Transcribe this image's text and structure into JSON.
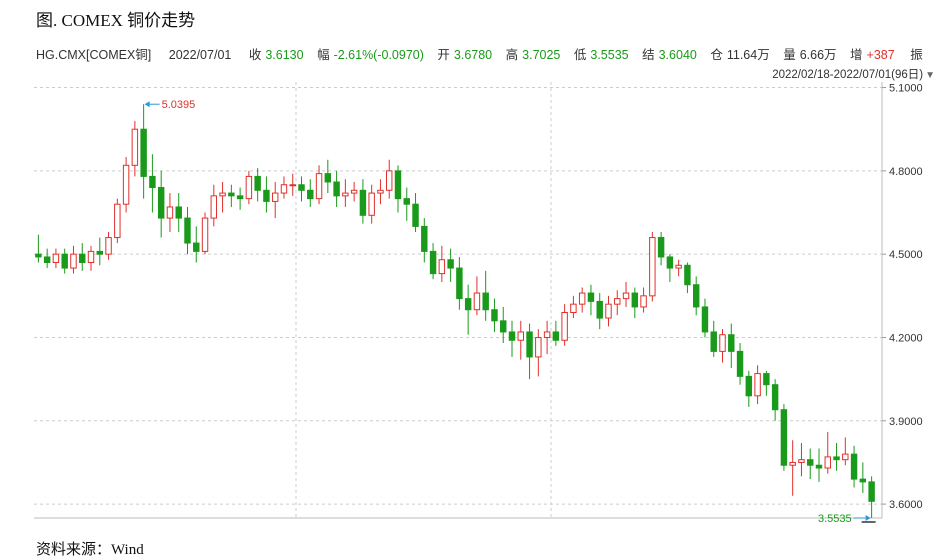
{
  "figure_title": "图. COMEX 铜价走势",
  "source": "资料来源：Wind",
  "info": {
    "symbol": "HG.CMX[COMEX铜]",
    "date": "2022/07/01",
    "close_label": "收",
    "close": "3.6130",
    "change_label": "幅",
    "change": "-2.61%(-0.0970)",
    "open_label": "开",
    "open": "3.6780",
    "high_label": "高",
    "high": "3.7025",
    "low_label": "低",
    "low": "3.5535",
    "settle_label": "结",
    "settle": "3.6040",
    "oi_label": "仓",
    "oi": "11.64万",
    "volume_label": "量",
    "volume": "6.66万",
    "oi_change_label": "增",
    "oi_change": "+387",
    "amplitude_label": "振",
    "range": "2022/02/18-2022/07/01(96日)"
  },
  "colors": {
    "up": "#e0302c",
    "down": "#1a9a1a",
    "grid": "#cccccc",
    "annot": "#2a9bd6"
  },
  "chart_data": {
    "type": "candlestick",
    "ylim": [
      3.55,
      5.12
    ],
    "yticks": [
      "3.6000",
      "3.9000",
      "4.2000",
      "4.5000",
      "4.8000",
      "5.1000"
    ],
    "annotations": {
      "max": "5.0395",
      "min": "3.5535"
    },
    "candles": [
      [
        4.5,
        4.49,
        4.57,
        4.47
      ],
      [
        4.49,
        4.47,
        4.52,
        4.45
      ],
      [
        4.47,
        4.5,
        4.52,
        4.45
      ],
      [
        4.5,
        4.45,
        4.52,
        4.43
      ],
      [
        4.45,
        4.5,
        4.53,
        4.43
      ],
      [
        4.5,
        4.47,
        4.54,
        4.44
      ],
      [
        4.47,
        4.51,
        4.53,
        4.44
      ],
      [
        4.51,
        4.5,
        4.56,
        4.46
      ],
      [
        4.5,
        4.56,
        4.58,
        4.48
      ],
      [
        4.56,
        4.68,
        4.7,
        4.54
      ],
      [
        4.68,
        4.82,
        4.85,
        4.65
      ],
      [
        4.82,
        4.95,
        4.98,
        4.78
      ],
      [
        4.95,
        4.78,
        5.04,
        4.7
      ],
      [
        4.78,
        4.74,
        4.86,
        4.65
      ],
      [
        4.74,
        4.63,
        4.8,
        4.56
      ],
      [
        4.63,
        4.67,
        4.72,
        4.58
      ],
      [
        4.67,
        4.63,
        4.72,
        4.58
      ],
      [
        4.63,
        4.54,
        4.67,
        4.5
      ],
      [
        4.54,
        4.51,
        4.6,
        4.47
      ],
      [
        4.51,
        4.63,
        4.65,
        4.5
      ],
      [
        4.63,
        4.71,
        4.75,
        4.6
      ],
      [
        4.71,
        4.72,
        4.76,
        4.65
      ],
      [
        4.72,
        4.71,
        4.75,
        4.67
      ],
      [
        4.71,
        4.7,
        4.74,
        4.66
      ],
      [
        4.7,
        4.78,
        4.8,
        4.68
      ],
      [
        4.78,
        4.73,
        4.81,
        4.69
      ],
      [
        4.73,
        4.69,
        4.78,
        4.65
      ],
      [
        4.69,
        4.72,
        4.76,
        4.63
      ],
      [
        4.72,
        4.75,
        4.78,
        4.7
      ],
      [
        4.75,
        4.75,
        4.79,
        4.71
      ],
      [
        4.75,
        4.73,
        4.78,
        4.69
      ],
      [
        4.73,
        4.7,
        4.77,
        4.67
      ],
      [
        4.7,
        4.79,
        4.82,
        4.68
      ],
      [
        4.79,
        4.76,
        4.84,
        4.72
      ],
      [
        4.76,
        4.71,
        4.8,
        4.67
      ],
      [
        4.71,
        4.72,
        4.77,
        4.67
      ],
      [
        4.72,
        4.73,
        4.76,
        4.69
      ],
      [
        4.73,
        4.64,
        4.77,
        4.61
      ],
      [
        4.64,
        4.72,
        4.75,
        4.61
      ],
      [
        4.72,
        4.73,
        4.77,
        4.68
      ],
      [
        4.73,
        4.8,
        4.84,
        4.7
      ],
      [
        4.8,
        4.7,
        4.82,
        4.65
      ],
      [
        4.7,
        4.68,
        4.74,
        4.62
      ],
      [
        4.68,
        4.6,
        4.72,
        4.58
      ],
      [
        4.6,
        4.51,
        4.63,
        4.47
      ],
      [
        4.51,
        4.43,
        4.54,
        4.41
      ],
      [
        4.43,
        4.48,
        4.53,
        4.4
      ],
      [
        4.48,
        4.45,
        4.52,
        4.4
      ],
      [
        4.45,
        4.34,
        4.49,
        4.3
      ],
      [
        4.34,
        4.3,
        4.39,
        4.21
      ],
      [
        4.3,
        4.36,
        4.42,
        4.28
      ],
      [
        4.36,
        4.3,
        4.44,
        4.26
      ],
      [
        4.3,
        4.26,
        4.34,
        4.22
      ],
      [
        4.26,
        4.22,
        4.31,
        4.18
      ],
      [
        4.22,
        4.19,
        4.26,
        4.13
      ],
      [
        4.19,
        4.22,
        4.26,
        4.12
      ],
      [
        4.22,
        4.13,
        4.25,
        4.05
      ],
      [
        4.13,
        4.2,
        4.23,
        4.06
      ],
      [
        4.2,
        4.22,
        4.26,
        4.14
      ],
      [
        4.22,
        4.19,
        4.26,
        4.17
      ],
      [
        4.19,
        4.29,
        4.32,
        4.17
      ],
      [
        4.29,
        4.32,
        4.35,
        4.27
      ],
      [
        4.32,
        4.36,
        4.38,
        4.29
      ],
      [
        4.36,
        4.33,
        4.39,
        4.28
      ],
      [
        4.33,
        4.27,
        4.36,
        4.23
      ],
      [
        4.27,
        4.32,
        4.35,
        4.24
      ],
      [
        4.32,
        4.34,
        4.37,
        4.28
      ],
      [
        4.34,
        4.36,
        4.4,
        4.31
      ],
      [
        4.36,
        4.31,
        4.38,
        4.27
      ],
      [
        4.31,
        4.35,
        4.38,
        4.29
      ],
      [
        4.35,
        4.56,
        4.58,
        4.33
      ],
      [
        4.56,
        4.49,
        4.58,
        4.46
      ],
      [
        4.49,
        4.45,
        4.5,
        4.4
      ],
      [
        4.45,
        4.46,
        4.48,
        4.42
      ],
      [
        4.46,
        4.39,
        4.47,
        4.36
      ],
      [
        4.39,
        4.31,
        4.42,
        4.28
      ],
      [
        4.31,
        4.22,
        4.34,
        4.2
      ],
      [
        4.22,
        4.15,
        4.26,
        4.13
      ],
      [
        4.15,
        4.21,
        4.23,
        4.11
      ],
      [
        4.21,
        4.15,
        4.25,
        4.09
      ],
      [
        4.15,
        4.06,
        4.18,
        4.03
      ],
      [
        4.06,
        3.99,
        4.08,
        3.95
      ],
      [
        3.99,
        4.07,
        4.1,
        3.96
      ],
      [
        4.07,
        4.03,
        4.08,
        3.99
      ],
      [
        4.03,
        3.94,
        4.05,
        3.9
      ],
      [
        3.94,
        3.74,
        3.96,
        3.72
      ],
      [
        3.74,
        3.75,
        3.83,
        3.63
      ],
      [
        3.75,
        3.76,
        3.82,
        3.7
      ],
      [
        3.76,
        3.74,
        3.8,
        3.69
      ],
      [
        3.74,
        3.73,
        3.8,
        3.68
      ],
      [
        3.73,
        3.77,
        3.86,
        3.71
      ],
      [
        3.77,
        3.76,
        3.82,
        3.72
      ],
      [
        3.76,
        3.78,
        3.84,
        3.74
      ],
      [
        3.78,
        3.69,
        3.81,
        3.66
      ],
      [
        3.69,
        3.68,
        3.75,
        3.64
      ],
      [
        3.68,
        3.61,
        3.7,
        3.55
      ]
    ]
  }
}
